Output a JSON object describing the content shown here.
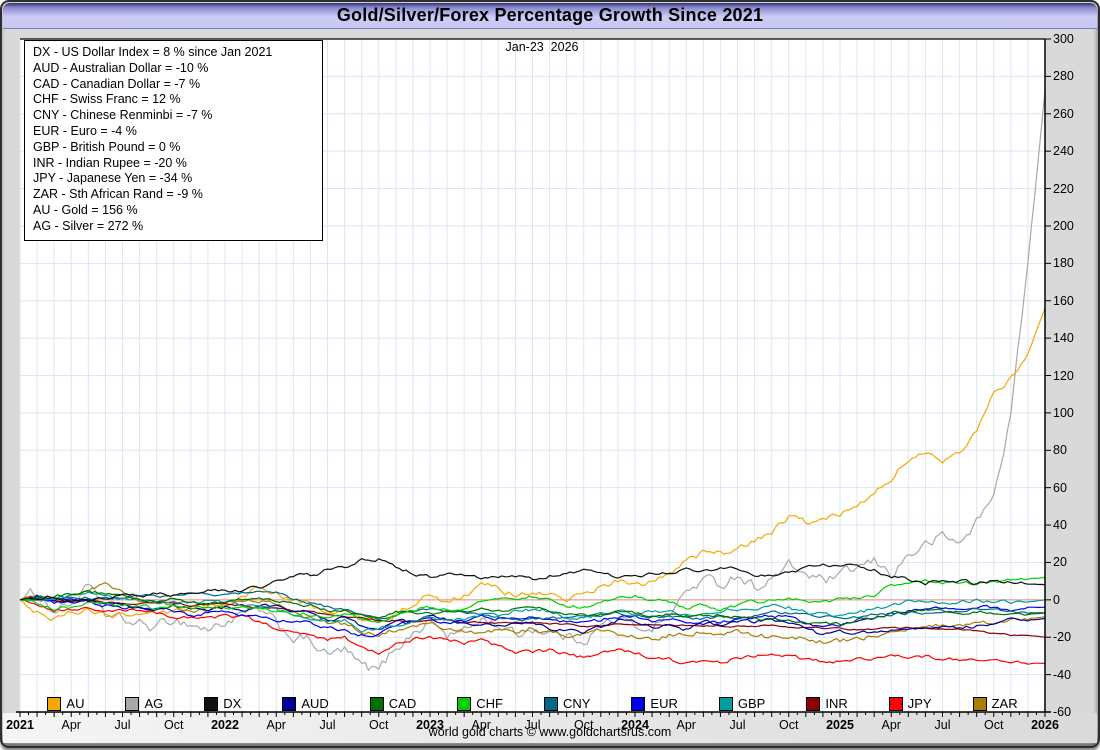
{
  "window": {
    "title": "Gold/Silver/Forex Percentage Growth Since 2021"
  },
  "date_label": "Jan-23  2026",
  "footer": "world gold charts © www.goldchartsrus.com",
  "legend_box": {
    "lines": [
      "DX - US Dollar Index = 8 % since Jan 2021",
      "AUD - Australian Dollar = -10 %",
      "CAD - Canadian Dollar = -7 %",
      "CHF - Swiss Franc = 12 %",
      "CNY - Chinese Renminbi = -7 %",
      "EUR - Euro = -4 %",
      "GBP - British Pound = 0 %",
      "INR - Indian Rupee = -20 %",
      "JPY - Japanese Yen = -34 %",
      "ZAR - Sth African Rand = -9 %",
      "AU - Gold = 156 %",
      "AG - Silver = 272 %"
    ]
  },
  "colors": {
    "grid": "#dbe7f4",
    "zero_line": "#e98080",
    "axis": "#000000",
    "plot_bg": "#ffffff",
    "frame": "#d9d9d9"
  },
  "y_axis": {
    "min": -60,
    "max": 300,
    "step": 20,
    "ticks": [
      300,
      280,
      260,
      240,
      220,
      200,
      180,
      160,
      140,
      120,
      100,
      80,
      60,
      40,
      20,
      0,
      -20,
      -40,
      -60
    ]
  },
  "x_axis": {
    "ticks": [
      {
        "label": "2021",
        "t": 0,
        "bold": true
      },
      {
        "label": "Apr",
        "t": 3,
        "bold": false
      },
      {
        "label": "Jul",
        "t": 6,
        "bold": false
      },
      {
        "label": "Oct",
        "t": 9,
        "bold": false
      },
      {
        "label": "2022",
        "t": 12,
        "bold": true
      },
      {
        "label": "Apr",
        "t": 15,
        "bold": false
      },
      {
        "label": "Jul",
        "t": 18,
        "bold": false
      },
      {
        "label": "Oct",
        "t": 21,
        "bold": false
      },
      {
        "label": "2023",
        "t": 24,
        "bold": true
      },
      {
        "label": "Apr",
        "t": 27,
        "bold": false
      },
      {
        "label": "Jul",
        "t": 30,
        "bold": false
      },
      {
        "label": "Oct",
        "t": 33,
        "bold": false
      },
      {
        "label": "2024",
        "t": 36,
        "bold": true
      },
      {
        "label": "Apr",
        "t": 39,
        "bold": false
      },
      {
        "label": "Jul",
        "t": 42,
        "bold": false
      },
      {
        "label": "Oct",
        "t": 45,
        "bold": false
      },
      {
        "label": "2025",
        "t": 48,
        "bold": true
      },
      {
        "label": "Apr",
        "t": 51,
        "bold": false
      },
      {
        "label": "Jul",
        "t": 54,
        "bold": false
      },
      {
        "label": "Oct",
        "t": 57,
        "bold": false
      },
      {
        "label": "2026",
        "t": 60,
        "bold": true
      }
    ]
  },
  "chart_data": {
    "type": "line",
    "title": "Gold/Silver/Forex Percentage Growth Since 2021",
    "x_unit": "months since Jan 2021 (0 = Jan 2021, 60 = Jan 2026)",
    "x_range": [
      0,
      60
    ],
    "ylim": [
      -60,
      300
    ],
    "grid": true,
    "legend_position": "bottom",
    "draw_order": [
      "AG",
      "AU",
      "JPY",
      "ZAR",
      "INR",
      "EUR",
      "AUD",
      "CNY",
      "GBP",
      "CAD",
      "CHF",
      "DX"
    ],
    "series": [
      {
        "name": "AU",
        "label": "AU",
        "color": "#F5A800",
        "vol": 1.6,
        "final_pct": 156,
        "values": [
          0,
          -6,
          -10,
          -7,
          -4,
          -9,
          -8,
          -6,
          -9,
          -7,
          -5,
          -3,
          -2,
          3,
          6,
          3,
          -1,
          -3,
          -7,
          -6,
          -10,
          -11,
          -7,
          -2,
          2,
          -2,
          3,
          7,
          6,
          2,
          4,
          2,
          0,
          4,
          7,
          10,
          8,
          9,
          15,
          22,
          25,
          24,
          27,
          31,
          37,
          44,
          41,
          43,
          45,
          52,
          58,
          66,
          75,
          77,
          74,
          79,
          92,
          112,
          118,
          132,
          156
        ]
      },
      {
        "name": "AG",
        "label": "AG",
        "color": "#A8A8A8",
        "vol": 2.6,
        "final_pct": 272,
        "values": [
          0,
          4,
          -6,
          -2,
          7,
          -8,
          -11,
          -13,
          -15,
          -10,
          -13,
          -16,
          -12,
          -8,
          -6,
          -13,
          -20,
          -22,
          -30,
          -27,
          -36,
          -38,
          -25,
          -18,
          -11,
          -19,
          -17,
          -10,
          -13,
          -19,
          -15,
          -17,
          -20,
          -21,
          -14,
          -10,
          -15,
          -14,
          -8,
          4,
          11,
          8,
          14,
          7,
          11,
          18,
          14,
          10,
          12,
          17,
          20,
          14,
          24,
          29,
          34,
          30,
          42,
          55,
          100,
          180,
          272
        ]
      },
      {
        "name": "DX",
        "label": "DX",
        "color": "#111111",
        "vol": 0.9,
        "final_pct": 8,
        "values": [
          0,
          1,
          2,
          0,
          -1,
          1,
          2,
          2,
          3,
          3,
          5,
          5,
          5,
          5,
          7,
          10,
          13,
          13,
          16,
          18,
          21,
          22,
          17,
          14,
          12,
          13,
          13,
          12,
          13,
          13,
          11,
          13,
          15,
          16,
          15,
          12,
          13,
          14,
          14,
          16,
          16,
          17,
          17,
          14,
          12,
          14,
          17,
          18,
          19,
          18,
          16,
          12,
          11,
          9,
          10,
          10,
          9,
          10,
          10,
          9,
          8
        ]
      },
      {
        "name": "AUD",
        "label": "AUD",
        "color": "#000099",
        "vol": 0.9,
        "final_pct": -10,
        "values": [
          0,
          2,
          0,
          1,
          1,
          -1,
          -3,
          -4,
          -5,
          -2,
          -6,
          -6,
          -4,
          -6,
          -3,
          -4,
          -7,
          -7,
          -10,
          -10,
          -14,
          -16,
          -12,
          -11,
          -9,
          -10,
          -13,
          -13,
          -14,
          -13,
          -12,
          -15,
          -16,
          -17,
          -15,
          -11,
          -12,
          -15,
          -14,
          -16,
          -13,
          -13,
          -12,
          -12,
          -10,
          -12,
          -15,
          -19,
          -16,
          -18,
          -18,
          -17,
          -16,
          -15,
          -14,
          -15,
          -14,
          -12,
          -11,
          -11,
          -10
        ]
      },
      {
        "name": "CAD",
        "label": "CAD",
        "color": "#007000",
        "vol": 0.8,
        "final_pct": -7,
        "values": [
          0,
          1,
          2,
          3,
          5,
          3,
          2,
          0,
          -1,
          1,
          -1,
          -2,
          -1,
          0,
          1,
          0,
          -2,
          -3,
          -6,
          -5,
          -8,
          -9,
          -6,
          -7,
          -7,
          -7,
          -7,
          -5,
          -6,
          -4,
          -4,
          -6,
          -7,
          -8,
          -8,
          -6,
          -7,
          -8,
          -8,
          -9,
          -9,
          -8,
          -9,
          -10,
          -11,
          -10,
          -12,
          -13,
          -13,
          -11,
          -10,
          -7,
          -6,
          -5,
          -6,
          -7,
          -6,
          -7,
          -8,
          -8,
          -7
        ]
      },
      {
        "name": "CHF",
        "label": "CHF",
        "color": "#00D000",
        "vol": 0.9,
        "final_pct": 12,
        "values": [
          0,
          -2,
          -5,
          -4,
          -2,
          -3,
          -3,
          -3,
          -5,
          -4,
          -4,
          -3,
          -4,
          -4,
          -5,
          -6,
          -8,
          -8,
          -9,
          -8,
          -11,
          -12,
          -8,
          -5,
          -4,
          -6,
          -4,
          -1,
          0,
          1,
          2,
          0,
          -3,
          -4,
          -2,
          1,
          2,
          0,
          -1,
          -4,
          -3,
          -5,
          -3,
          -1,
          0,
          1,
          0,
          -1,
          0,
          1,
          2,
          8,
          9,
          10,
          9,
          8,
          9,
          10,
          11,
          11,
          12
        ]
      },
      {
        "name": "CNY",
        "label": "CNY",
        "color": "#00688B",
        "vol": 0.7,
        "final_pct": -7,
        "values": [
          0,
          0,
          1,
          1,
          1,
          1,
          1,
          2,
          2,
          2,
          3,
          3,
          3,
          4,
          4,
          4,
          0,
          -2,
          -4,
          -5,
          -8,
          -10,
          -9,
          -6,
          -5,
          -6,
          -6,
          -7,
          -9,
          -11,
          -10,
          -10,
          -9,
          -9,
          -8,
          -7,
          -8,
          -9,
          -9,
          -10,
          -10,
          -9,
          -10,
          -8,
          -7,
          -7,
          -8,
          -9,
          -9,
          -9,
          -8,
          -8,
          -7,
          -7,
          -6,
          -6,
          -5,
          -5,
          -6,
          -7,
          -7
        ]
      },
      {
        "name": "EUR",
        "label": "EUR",
        "color": "#0000EE",
        "vol": 0.9,
        "final_pct": -4,
        "values": [
          0,
          1,
          -2,
          -1,
          -1,
          -3,
          -4,
          -4,
          -5,
          -6,
          -8,
          -7,
          -7,
          -8,
          -9,
          -11,
          -12,
          -12,
          -15,
          -16,
          -19,
          -18,
          -14,
          -12,
          -10,
          -12,
          -11,
          -9,
          -10,
          -10,
          -8,
          -10,
          -12,
          -13,
          -11,
          -9,
          -9,
          -11,
          -11,
          -12,
          -11,
          -12,
          -11,
          -10,
          -8,
          -9,
          -12,
          -15,
          -13,
          -12,
          -10,
          -7,
          -6,
          -5,
          -4,
          -5,
          -4,
          -4,
          -5,
          -4,
          -4
        ]
      },
      {
        "name": "GBP",
        "label": "GBP",
        "color": "#009E9E",
        "vol": 0.9,
        "final_pct": 0,
        "values": [
          0,
          1,
          1,
          2,
          3,
          2,
          1,
          0,
          -1,
          0,
          -2,
          -1,
          -1,
          -2,
          -4,
          -5,
          -8,
          -10,
          -12,
          -11,
          -17,
          -15,
          -13,
          -11,
          -9,
          -11,
          -10,
          -8,
          -9,
          -6,
          -5,
          -6,
          -10,
          -10,
          -8,
          -6,
          -7,
          -7,
          -7,
          -8,
          -7,
          -6,
          -5,
          -6,
          -3,
          -4,
          -7,
          -8,
          -8,
          -7,
          -5,
          -3,
          -1,
          0,
          -2,
          -1,
          0,
          -1,
          -1,
          -1,
          0
        ]
      },
      {
        "name": "INR",
        "label": "INR",
        "color": "#8B0000",
        "vol": 0.4,
        "final_pct": -20,
        "values": [
          0,
          0,
          0,
          -1,
          0,
          -1,
          -2,
          -2,
          -1,
          -2,
          -3,
          -2,
          -2,
          -3,
          -4,
          -4,
          -6,
          -6,
          -8,
          -9,
          -10,
          -11,
          -11,
          -12,
          -11,
          -11,
          -12,
          -12,
          -12,
          -12,
          -12,
          -13,
          -13,
          -14,
          -14,
          -13,
          -13,
          -13,
          -13,
          -14,
          -14,
          -14,
          -14,
          -14,
          -14,
          -15,
          -15,
          -15,
          -15,
          -16,
          -16,
          -15,
          -15,
          -15,
          -15,
          -16,
          -17,
          -18,
          -19,
          -19,
          -20
        ]
      },
      {
        "name": "JPY",
        "label": "JPY",
        "color": "#FF0000",
        "vol": 0.9,
        "final_pct": -34,
        "values": [
          0,
          -2,
          -5,
          -5,
          -5,
          -6,
          -6,
          -6,
          -7,
          -9,
          -9,
          -10,
          -9,
          -9,
          -12,
          -15,
          -18,
          -19,
          -21,
          -20,
          -25,
          -28,
          -24,
          -21,
          -19,
          -22,
          -23,
          -22,
          -25,
          -28,
          -28,
          -27,
          -29,
          -31,
          -29,
          -27,
          -28,
          -31,
          -32,
          -34,
          -33,
          -34,
          -31,
          -30,
          -28,
          -30,
          -32,
          -33,
          -33,
          -32,
          -31,
          -30,
          -31,
          -30,
          -32,
          -32,
          -33,
          -32,
          -33,
          -34,
          -34
        ]
      },
      {
        "name": "ZAR",
        "label": "ZAR",
        "color": "#A97E00",
        "vol": 1.2,
        "final_pct": -9,
        "values": [
          0,
          2,
          -1,
          2,
          5,
          8,
          3,
          0,
          -2,
          -4,
          -7,
          -6,
          -3,
          -1,
          0,
          -2,
          -6,
          -10,
          -12,
          -13,
          -16,
          -18,
          -16,
          -13,
          -12,
          -15,
          -17,
          -19,
          -16,
          -19,
          -15,
          -17,
          -19,
          -18,
          -17,
          -19,
          -20,
          -21,
          -19,
          -18,
          -17,
          -18,
          -17,
          -19,
          -20,
          -19,
          -21,
          -23,
          -22,
          -21,
          -19,
          -17,
          -16,
          -15,
          -14,
          -14,
          -13,
          -12,
          -11,
          -10,
          -9
        ]
      }
    ]
  }
}
